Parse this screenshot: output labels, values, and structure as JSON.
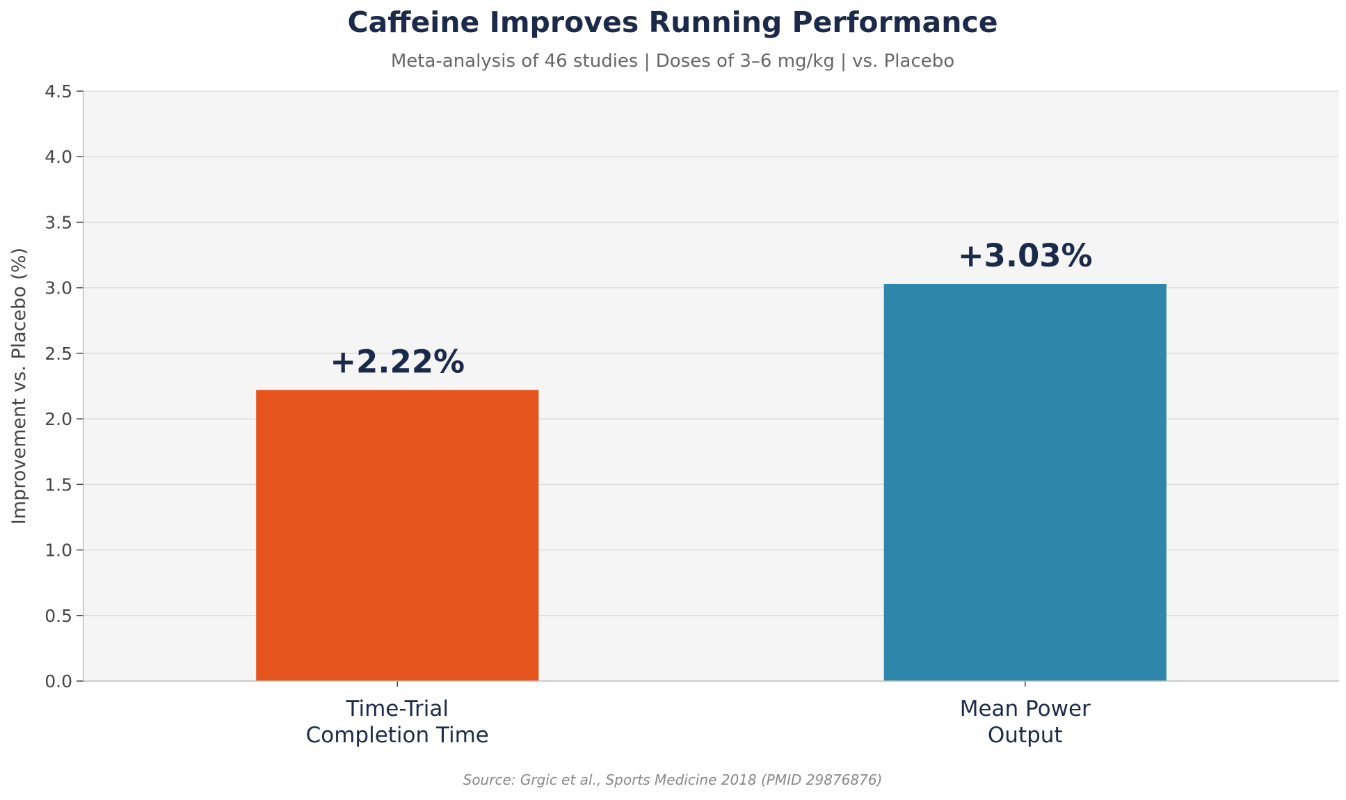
{
  "chart_data": {
    "type": "bar",
    "title": "Caffeine Improves Running Performance",
    "subtitle": "Meta-analysis of 46 studies | Doses of 3–6 mg/kg | vs. Placebo",
    "xlabel": "",
    "ylabel": "Improvement vs. Placebo (%)",
    "categories": [
      [
        "Time-Trial",
        "Completion Time"
      ],
      [
        "Mean Power",
        "Output"
      ]
    ],
    "values": [
      2.22,
      3.03
    ],
    "value_labels": [
      "+2.22%",
      "+3.03%"
    ],
    "bar_colors": [
      "#e6541d",
      "#2e86ab"
    ],
    "ylim": [
      0,
      4.5
    ],
    "yticks": [
      "0.0",
      "0.5",
      "1.0",
      "1.5",
      "2.0",
      "2.5",
      "3.0",
      "3.5",
      "4.0",
      "4.5"
    ],
    "grid": true,
    "source": "Source: Grgic et al., Sports Medicine 2018 (PMID 29876876)",
    "colors": {
      "title": "#1c2a4a",
      "subtitle": "#666666",
      "tick": "#444444",
      "plot_bg": "#f5f5f5",
      "grid": "#dddddd",
      "axis": "#bbbbbb",
      "source": "#888888"
    }
  }
}
